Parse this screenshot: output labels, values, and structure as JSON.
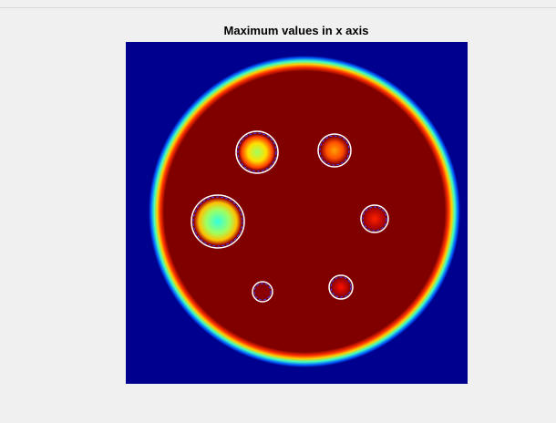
{
  "figure": {
    "title": "Maximum values in x axis"
  }
}
